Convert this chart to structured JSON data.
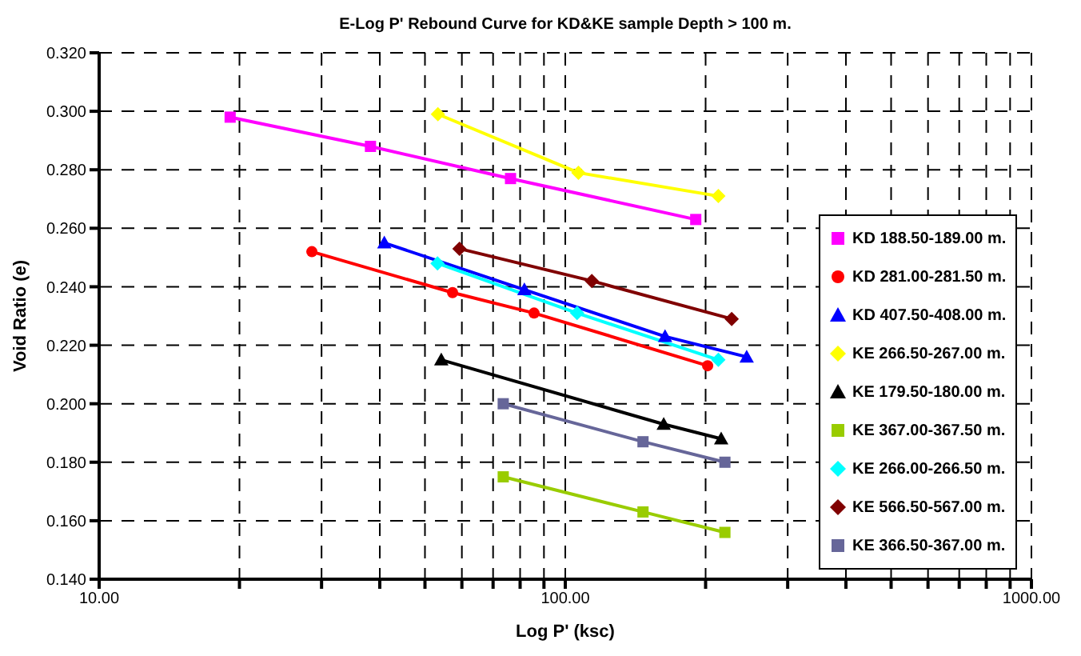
{
  "chart_data": {
    "type": "line",
    "title": "E-Log P'  Rebound Curve for KD&KE sample Depth > 100 m.",
    "xlabel": "Log P' (ksc)",
    "ylabel": "Void Ratio (e)",
    "log": "x",
    "xlim": [
      10,
      1000
    ],
    "xticks": [
      {
        "value": 10,
        "label": "10.00"
      },
      {
        "value": 20,
        "label": null
      },
      {
        "value": 30,
        "label": null
      },
      {
        "value": 40,
        "label": null
      },
      {
        "value": 50,
        "label": null
      },
      {
        "value": 60,
        "label": null
      },
      {
        "value": 70,
        "label": null
      },
      {
        "value": 80,
        "label": null
      },
      {
        "value": 90,
        "label": null
      },
      {
        "value": 100,
        "label": "100.00"
      },
      {
        "value": 200,
        "label": null
      },
      {
        "value": 300,
        "label": null
      },
      {
        "value": 400,
        "label": null
      },
      {
        "value": 500,
        "label": null
      },
      {
        "value": 600,
        "label": null
      },
      {
        "value": 700,
        "label": null
      },
      {
        "value": 800,
        "label": null
      },
      {
        "value": 900,
        "label": null
      },
      {
        "value": 1000,
        "label": "1000.00"
      }
    ],
    "ylim": [
      0.14,
      0.32
    ],
    "yticks": [
      {
        "value": 0.14,
        "label": "0.140"
      },
      {
        "value": 0.16,
        "label": "0.160"
      },
      {
        "value": 0.18,
        "label": "0.180"
      },
      {
        "value": 0.2,
        "label": "0.200"
      },
      {
        "value": 0.22,
        "label": "0.220"
      },
      {
        "value": 0.24,
        "label": "0.240"
      },
      {
        "value": 0.26,
        "label": "0.260"
      },
      {
        "value": 0.28,
        "label": "0.280"
      },
      {
        "value": 0.3,
        "label": "0.300"
      },
      {
        "value": 0.32,
        "label": "0.320"
      }
    ],
    "grid": true,
    "legend": "right",
    "line_style": "solid",
    "series": [
      {
        "name": "KD 188.50-189.00 m.",
        "color": "#ff00ff",
        "marker": "square",
        "x": [
          19.1,
          38.2,
          76.3,
          190.5
        ],
        "values": [
          0.298,
          0.288,
          0.277,
          0.263
        ]
      },
      {
        "name": "KD 281.00-281.50 m.",
        "color": "#ff0000",
        "marker": "circle",
        "x": [
          28.6,
          57.3,
          85.7,
          202
        ],
        "values": [
          0.252,
          0.238,
          0.231,
          0.213
        ]
      },
      {
        "name": "KD 407.50-408.00 m.",
        "color": "#0000ff",
        "marker": "triangle",
        "x": [
          40.9,
          81.7,
          163.7,
          245
        ],
        "values": [
          0.255,
          0.239,
          0.223,
          0.216
        ]
      },
      {
        "name": "KE 266.50-267.00 m.",
        "color": "#ffff00",
        "marker": "diamond",
        "x": [
          53.3,
          106.7,
          213
        ],
        "values": [
          0.299,
          0.279,
          0.271
        ]
      },
      {
        "name": "KE 179.50-180.00 m.",
        "color": "#000000",
        "marker": "triangle",
        "x": [
          54.2,
          162.6,
          216
        ],
        "values": [
          0.215,
          0.193,
          0.188
        ]
      },
      {
        "name": "KE 367.00-367.50 m.",
        "color": "#99cc00",
        "marker": "square",
        "x": [
          73.6,
          146.8,
          220
        ],
        "values": [
          0.175,
          0.163,
          0.156
        ]
      },
      {
        "name": "KE 266.00-266.50 m.",
        "color": "#00ffff",
        "marker": "diamond",
        "x": [
          53.2,
          106,
          213
        ],
        "values": [
          0.248,
          0.231,
          0.215
        ]
      },
      {
        "name": "KE 566.50-567.00 m.",
        "color": "#800000",
        "marker": "diamond",
        "x": [
          59.3,
          114,
          227.5
        ],
        "values": [
          0.253,
          0.242,
          0.229
        ]
      },
      {
        "name": "KE 366.50-367.00 m.",
        "color": "#666699",
        "marker": "square",
        "x": [
          73.6,
          146.8,
          220
        ],
        "values": [
          0.2,
          0.187,
          0.18
        ]
      }
    ]
  }
}
